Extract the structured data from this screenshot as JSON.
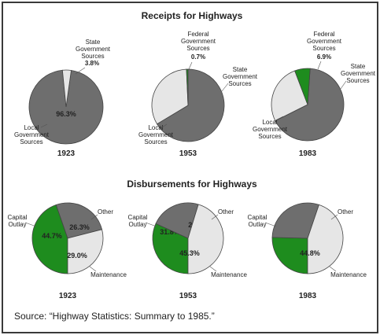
{
  "receipts_title": "Receipts for Highways",
  "disbursements_title": "Disbursements for Highways",
  "source": "Source: “Highway Statistics: Summary to 1985.”",
  "colors": {
    "local": "#6e6e6e",
    "state": "#e6e6e6",
    "federal": "#1e8c1e",
    "capital": "#1e8c1e",
    "other": "#6e6e6e",
    "maintenance": "#e6e6e6"
  },
  "chart_data": [
    {
      "type": "pie",
      "title": "Receipts for Highways",
      "year": "1923",
      "slices": [
        {
          "name": "Local Government Sources",
          "value": 96.3,
          "color": "#6e6e6e",
          "label": "96.3%"
        },
        {
          "name": "State Government Sources",
          "value": 3.8,
          "color": "#e6e6e6",
          "label": "3.8%"
        }
      ]
    },
    {
      "type": "pie",
      "title": "Receipts for Highways",
      "year": "1953",
      "slices": [
        {
          "name": "Local Government Sources",
          "value": 66.4,
          "color": "#6e6e6e",
          "label": "66.4%"
        },
        {
          "name": "State Government Sources",
          "value": 32.9,
          "color": "#e6e6e6",
          "label": ""
        },
        {
          "name": "Federal Government Sources",
          "value": 0.7,
          "color": "#1e8c1e",
          "label": "0.7%"
        }
      ]
    },
    {
      "type": "pie",
      "title": "Receipts for Highways",
      "year": "1983",
      "slices": [
        {
          "name": "Local Government Sources",
          "value": 66.5,
          "color": "#6e6e6e",
          "label": "66.5%"
        },
        {
          "name": "State Government Sources",
          "value": 26.6,
          "color": "#e6e6e6",
          "label": ""
        },
        {
          "name": "Federal Government Sources",
          "value": 6.9,
          "color": "#1e8c1e",
          "label": "6.9%"
        }
      ]
    },
    {
      "type": "pie",
      "title": "Disbursements for Highways",
      "year": "1923",
      "slices": [
        {
          "name": "Capital Outlay",
          "value": 44.7,
          "color": "#1e8c1e",
          "label": "44.7%"
        },
        {
          "name": "Other",
          "value": 26.3,
          "color": "#6e6e6e",
          "label": "26.3%"
        },
        {
          "name": "Maintenance",
          "value": 29.0,
          "color": "#e6e6e6",
          "label": "29.0%"
        }
      ]
    },
    {
      "type": "pie",
      "title": "Disbursements for Highways",
      "year": "1953",
      "slices": [
        {
          "name": "Capital Outlay",
          "value": 31.8,
          "color": "#1e8c1e",
          "label": "31.8%"
        },
        {
          "name": "Other",
          "value": 22.9,
          "color": "#6e6e6e",
          "label": "22.9%"
        },
        {
          "name": "Maintenance",
          "value": 45.3,
          "color": "#e6e6e6",
          "label": "45.3%"
        }
      ]
    },
    {
      "type": "pie",
      "title": "Disbursements for Highways",
      "year": "1983",
      "slices": [
        {
          "name": "Capital Outlay",
          "value": 25.4,
          "color": "#1e8c1e",
          "label": "25.4%"
        },
        {
          "name": "Other",
          "value": 29.8,
          "color": "#6e6e6e",
          "label": "29.8%"
        },
        {
          "name": "Maintenance",
          "value": 44.8,
          "color": "#e6e6e6",
          "label": "44.8%"
        }
      ]
    }
  ],
  "labels": {
    "r1923_state": [
      "State",
      "Government",
      "Sources"
    ],
    "r1923_local": [
      "Local",
      "Government",
      "Sources"
    ],
    "r1953_federal": [
      "Federal",
      "Government",
      "Sources"
    ],
    "r1953_state": [
      "State",
      "Government",
      "Sources"
    ],
    "r1953_local": [
      "Local",
      "Government",
      "Sources"
    ],
    "r1983_federal": [
      "Federal",
      "Government",
      "Sources"
    ],
    "r1983_state": [
      "State",
      "Government",
      "Sources"
    ],
    "r1983_local": [
      "Local",
      "Government",
      "Sources"
    ],
    "d_capital": [
      "Capital",
      "Outlay"
    ],
    "d_other": [
      "Other"
    ],
    "d_maintenance": [
      "Maintenance"
    ]
  }
}
